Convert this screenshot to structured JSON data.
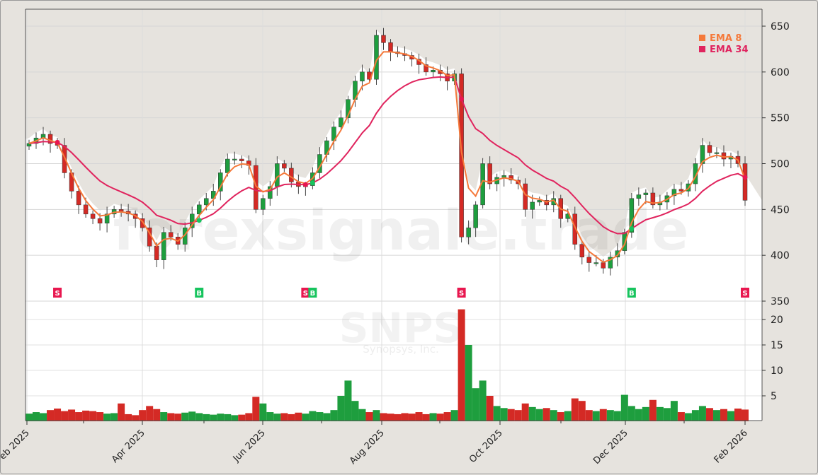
{
  "chart_data": {
    "type": "candlestick",
    "ticker": "SNPS",
    "company": "Synopsys, Inc.",
    "watermark": "forexsignale.trade",
    "x_range": [
      "Feb 2025",
      "Feb 2026"
    ],
    "x_ticks": [
      "Feb 2025",
      "Apr 2025",
      "Jun 2025",
      "Aug 2025",
      "Oct 2025",
      "Dec 2025",
      "Feb 2026"
    ],
    "price_ticks": [
      350,
      400,
      450,
      500,
      550,
      600,
      650
    ],
    "price_ylim": [
      350,
      665
    ],
    "volume_ticks": [
      5,
      10,
      15,
      20
    ],
    "volume_ylim": [
      0,
      22
    ],
    "grid": true,
    "legend": {
      "placement": "top-right",
      "items": [
        {
          "label": "EMA 8",
          "color": "#f5793a"
        },
        {
          "label": "EMA 34",
          "color": "#e0245e"
        }
      ]
    },
    "colors": {
      "up": "#1e9e3e",
      "down": "#d42a25",
      "background": "#e6e3de",
      "buy": "#17c45e",
      "sell": "#e8174f"
    },
    "close": [
      522,
      528,
      532,
      522,
      520,
      490,
      470,
      455,
      445,
      440,
      435,
      445,
      450,
      448,
      445,
      440,
      430,
      410,
      395,
      425,
      420,
      412,
      430,
      445,
      455,
      462,
      470,
      490,
      505,
      505,
      503,
      498,
      450,
      462,
      475,
      500,
      495,
      480,
      475,
      476,
      490,
      510,
      525,
      540,
      550,
      570,
      590,
      600,
      592,
      640,
      632,
      622,
      620,
      618,
      614,
      608,
      600,
      602,
      598,
      590,
      598,
      420,
      430,
      455,
      500,
      478,
      485,
      487,
      482,
      478,
      450,
      458,
      460,
      455,
      462,
      440,
      445,
      412,
      398,
      392,
      392,
      386,
      398,
      405,
      425,
      462,
      466,
      468,
      455,
      458,
      465,
      472,
      470,
      478,
      500,
      520,
      512,
      512,
      505,
      508,
      500,
      460
    ],
    "volume": [
      1.5,
      1.8,
      1.6,
      2.2,
      2.5,
      2.0,
      2.3,
      1.8,
      2.1,
      2.0,
      1.8,
      1.5,
      1.6,
      3.5,
      1.4,
      1.2,
      2.2,
      3.0,
      2.4,
      1.8,
      1.6,
      1.5,
      1.7,
      1.9,
      1.6,
      1.4,
      1.3,
      1.5,
      1.4,
      1.2,
      1.3,
      1.6,
      4.8,
      3.5,
      1.8,
      1.5,
      1.6,
      1.4,
      1.7,
      1.5,
      2.0,
      1.8,
      1.6,
      2.2,
      5.0,
      8.0,
      4.0,
      2.4,
      1.8,
      2.2,
      1.6,
      1.5,
      1.4,
      1.6,
      1.5,
      1.8,
      1.4,
      1.6,
      1.5,
      1.8,
      2.2,
      22.0,
      15.0,
      6.5,
      8.0,
      5.0,
      3.0,
      2.6,
      2.4,
      2.2,
      3.5,
      2.8,
      2.4,
      2.6,
      2.2,
      1.8,
      2.0,
      4.5,
      4.0,
      2.2,
      2.0,
      2.4,
      2.2,
      2.0,
      5.2,
      3.0,
      2.4,
      2.8,
      4.2,
      2.8,
      2.6,
      4.0,
      1.8,
      1.6,
      2.2,
      3.0,
      2.6,
      2.2,
      2.4,
      2.0,
      2.5,
      2.3
    ],
    "signals": [
      {
        "index": 4,
        "type": "S"
      },
      {
        "index": 24,
        "type": "B"
      },
      {
        "index": 39,
        "type": "S"
      },
      {
        "index": 40,
        "type": "B"
      },
      {
        "index": 61,
        "type": "S"
      },
      {
        "index": 85,
        "type": "B"
      },
      {
        "index": 101,
        "type": "S"
      }
    ]
  }
}
